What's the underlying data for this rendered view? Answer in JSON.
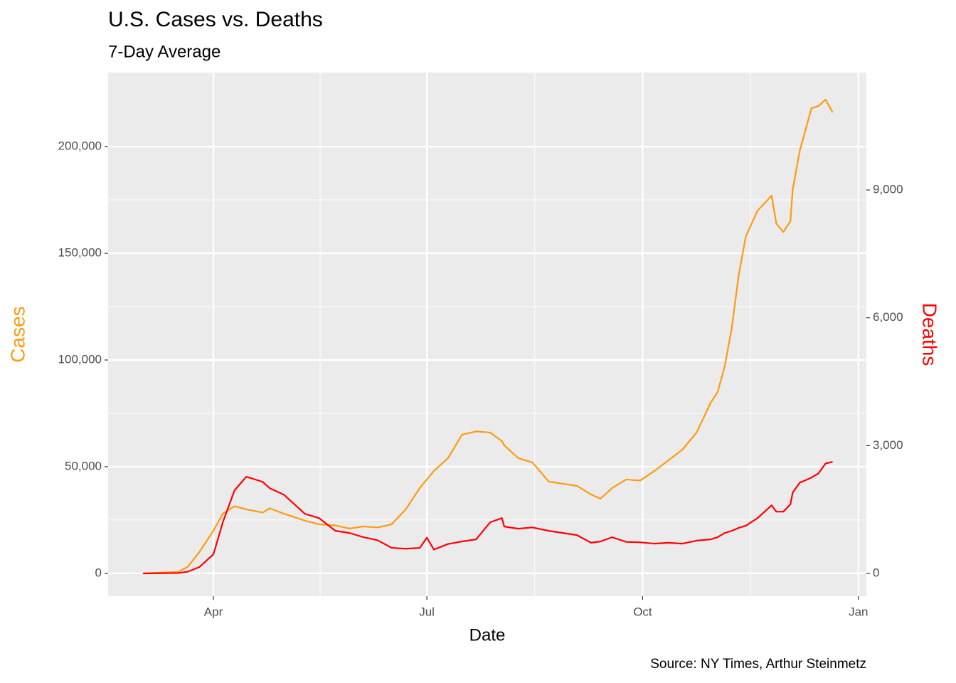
{
  "chart_data": {
    "type": "line",
    "title": "U.S. Cases vs. Deaths",
    "subtitle": "7-Day Average",
    "xlabel": "Date",
    "ylabel": "Cases",
    "y2label": "Deaths",
    "caption": "Source: NY Times, Arthur Steinmetz",
    "x": [
      62,
      77,
      81,
      86,
      92,
      96,
      101,
      106,
      113,
      116,
      122,
      131,
      137,
      144,
      150,
      156,
      162,
      168,
      174,
      180,
      183,
      186,
      192,
      198,
      204,
      210,
      215,
      216,
      222,
      228,
      235,
      241,
      247,
      253,
      257,
      262,
      268,
      274,
      280,
      286,
      292,
      298,
      304,
      307,
      310,
      313,
      316,
      319,
      324,
      330,
      332,
      335,
      338,
      339,
      342,
      345,
      347,
      350,
      353,
      356
    ],
    "series": [
      {
        "name": "Cases",
        "color": "#ff9a0e",
        "values": [
          0,
          700,
          3000,
          10000,
          20000,
          28000,
          31500,
          30000,
          28500,
          30500,
          28000,
          24700,
          23000,
          22500,
          21000,
          22000,
          21500,
          23000,
          30000,
          40000,
          44000,
          48000,
          54000,
          65000,
          66500,
          66000,
          62000,
          60000,
          54000,
          52000,
          43000,
          42000,
          41000,
          37000,
          35000,
          40000,
          44000,
          43500,
          48000,
          53000,
          58000,
          66000,
          80000,
          85000,
          97000,
          115000,
          140000,
          158000,
          170000,
          177000,
          164000,
          160000,
          165000,
          180000,
          198000,
          210000,
          218000,
          219000,
          222000,
          216000
        ]
      },
      {
        "name": "Deaths",
        "color": "#ff0000",
        "axis": "y2",
        "values": [
          0,
          10,
          40,
          150,
          450,
          1200,
          1950,
          2270,
          2150,
          2000,
          1850,
          1400,
          1300,
          1000,
          950,
          850,
          780,
          600,
          580,
          600,
          840,
          560,
          690,
          750,
          800,
          1200,
          1300,
          1100,
          1050,
          1080,
          1000,
          950,
          900,
          720,
          750,
          850,
          740,
          730,
          700,
          720,
          700,
          770,
          800,
          850,
          950,
          1000,
          1070,
          1120,
          1300,
          1600,
          1450,
          1450,
          1620,
          1900,
          2130,
          2200,
          2250,
          2350,
          2580,
          2620
        ]
      }
    ],
    "xlim": [
      47.1,
      370.4
    ],
    "xticks": [
      {
        "value": 92,
        "label": "Apr"
      },
      {
        "value": 183,
        "label": "Jul"
      },
      {
        "value": 275,
        "label": "Oct"
      },
      {
        "value": 367,
        "label": "Jan"
      }
    ],
    "ylim": [
      -10700,
      234700
    ],
    "yticks": [
      0,
      {
        "value": 50000,
        "label": "50,000"
      },
      {
        "value": 100000,
        "label": "100,000"
      },
      {
        "value": 150000,
        "label": "150,000"
      },
      {
        "value": 200000,
        "label": "200,000"
      }
    ],
    "y2lim": [
      -534,
      11755
    ],
    "y2ticks": [
      0,
      {
        "value": 3000,
        "label": "3,000"
      },
      {
        "value": 6000,
        "label": "6,000"
      },
      {
        "value": 9000,
        "label": "9,000"
      }
    ],
    "grid": true
  }
}
